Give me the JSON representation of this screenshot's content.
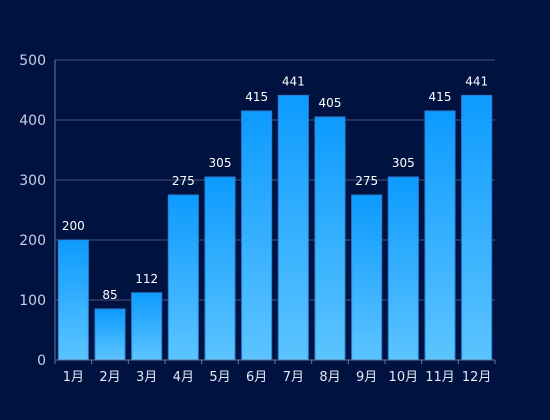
{
  "chart_data": {
    "type": "bar",
    "categories": [
      "1月",
      "2月",
      "3月",
      "4月",
      "5月",
      "6月",
      "7月",
      "8月",
      "9月",
      "10月",
      "11月",
      "12月"
    ],
    "values": [
      200,
      85,
      112,
      275,
      305,
      415,
      441,
      405,
      275,
      305,
      415,
      441
    ],
    "title": "",
    "xlabel": "",
    "ylabel": "",
    "ylim": [
      0,
      500
    ],
    "yticks": [
      0,
      100,
      200,
      300,
      400,
      500
    ],
    "grid": true,
    "data_labels": true,
    "colors": {
      "background": "#001240",
      "bar_top": "#0d9bff",
      "bar_bottom": "#5cc4ff",
      "label": "#ffffff",
      "tick_label": "#c9cfe4",
      "grid": "#4a5478"
    }
  }
}
